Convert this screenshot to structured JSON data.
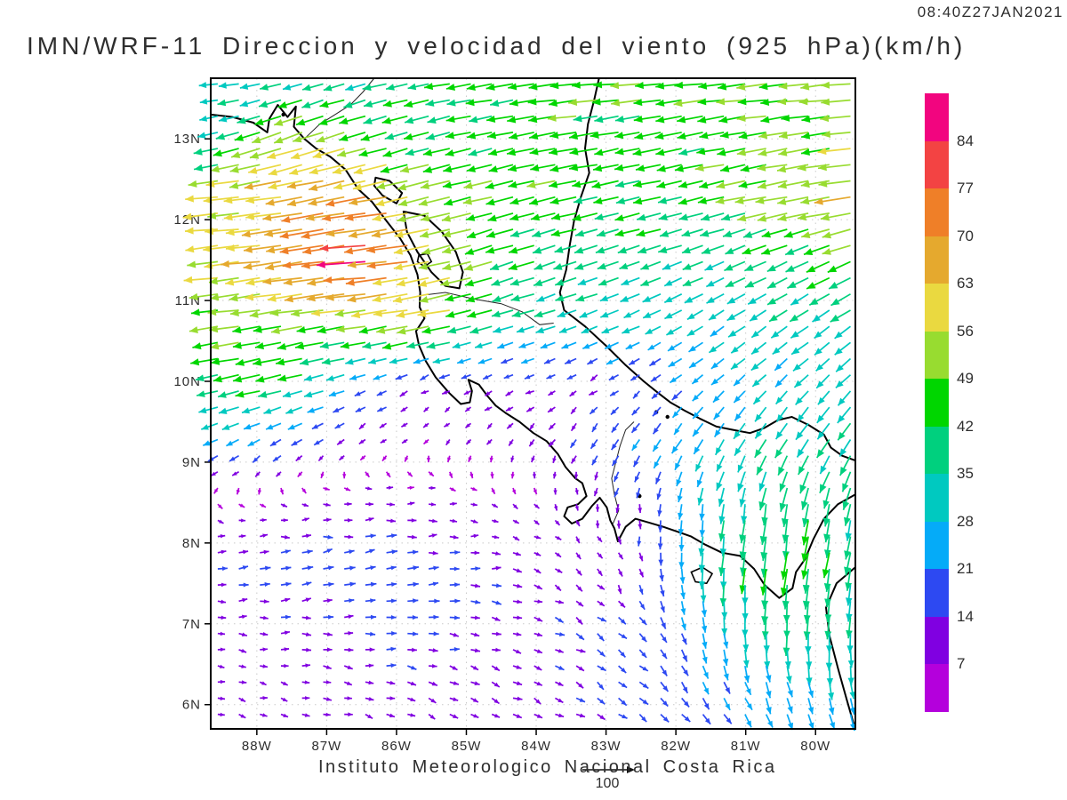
{
  "header": {
    "timestamp": "08:40Z27JAN2021",
    "title": "IMN/WRF-11 Direccion y velocidad del viento (925 hPa)(km/h)"
  },
  "footer": {
    "credit": "Instituto Meteorologico Nacional Costa Rica",
    "reference_label": "100",
    "reference_value_kmh": 100
  },
  "style": {
    "grid_color": "#c9c9c9",
    "coast_color": "#000000",
    "text_color": "#2e2e2e",
    "reference_arrow_color": "#111111"
  },
  "chart_data": {
    "type": "vector_field",
    "model": "IMN/WRF-11",
    "field": "Direccion y velocidad del viento",
    "level": "925 hPa",
    "units": "km/h",
    "valid_time": "08:40Z27JAN2021",
    "projection": {
      "lon_left": 88.66,
      "lon_right": 79.43,
      "lat_top": 13.75,
      "lat_bottom": 5.7
    },
    "x_axis": {
      "tick_labels": [
        "88W",
        "87W",
        "86W",
        "85W",
        "84W",
        "83W",
        "82W",
        "81W",
        "80W"
      ],
      "tick_lons": [
        88,
        87,
        86,
        85,
        84,
        83,
        82,
        81,
        80
      ]
    },
    "y_axis": {
      "tick_labels": [
        "6N",
        "7N",
        "8N",
        "9N",
        "10N",
        "11N",
        "12N",
        "13N"
      ],
      "tick_lats": [
        6,
        7,
        8,
        9,
        10,
        11,
        12,
        13
      ]
    },
    "colorbar": {
      "levels": [
        7,
        14,
        21,
        28,
        35,
        42,
        49,
        56,
        63,
        70,
        77,
        84
      ],
      "colors": [
        "#b400dc",
        "#8000e1",
        "#2d49f2",
        "#05abf8",
        "#00c9c0",
        "#00d07e",
        "#00d600",
        "#98dc30",
        "#ead940",
        "#e5a92e",
        "#ef7f28",
        "#f34343",
        "#f2057f"
      ]
    },
    "wind_grid": {
      "lons_w": [
        88.7,
        87.5,
        86.5,
        85.5,
        84.5,
        83.5,
        82.5,
        81.5,
        80.5,
        79.4
      ],
      "lats_n": [
        13.75,
        13.0,
        12.25,
        11.5,
        10.75,
        10.0,
        9.25,
        8.5,
        7.75,
        7.0,
        6.25,
        5.7
      ],
      "u_east_kmh": [
        [
          -28,
          -32,
          -35,
          -38,
          -42,
          -45,
          -46,
          -46,
          -48,
          -50
        ],
        [
          -32,
          -55,
          -45,
          -40,
          -42,
          -44,
          -45,
          -45,
          -47,
          -52
        ],
        [
          -55,
          -62,
          -68,
          -55,
          -45,
          -44,
          -43,
          -43,
          -50,
          -58
        ],
        [
          -55,
          -68,
          -84,
          -58,
          -42,
          -38,
          -35,
          -33,
          -36,
          -40
        ],
        [
          -46,
          -50,
          -52,
          -55,
          -35,
          -30,
          -28,
          -25,
          -28,
          -30
        ],
        [
          -40,
          -42,
          -20,
          -10,
          -12,
          -10,
          -12,
          -18,
          -20,
          -22
        ],
        [
          -22,
          -16,
          -8,
          -4,
          -5,
          -8,
          -12,
          -15,
          -18,
          -20
        ],
        [
          3,
          8,
          12,
          10,
          6,
          3,
          -2,
          -4,
          -6,
          -8
        ],
        [
          14,
          16,
          17,
          16,
          13,
          9,
          4,
          -2,
          -5,
          -7
        ],
        [
          11,
          13,
          15,
          15,
          13,
          12,
          10,
          4,
          -1,
          -3
        ],
        [
          9,
          11,
          12,
          12,
          12,
          12,
          12,
          10,
          7,
          4
        ],
        [
          9,
          10,
          11,
          11,
          12,
          12,
          12,
          13,
          11,
          8
        ]
      ],
      "v_north_kmh": [
        [
          -2,
          -8,
          -10,
          -8,
          -6,
          -4,
          -4,
          -5,
          -5,
          -4
        ],
        [
          -6,
          -20,
          -14,
          -10,
          -9,
          -8,
          -8,
          -8,
          -8,
          -6
        ],
        [
          -5,
          -10,
          -12,
          -14,
          -11,
          -10,
          -10,
          -10,
          -10,
          -8
        ],
        [
          -5,
          -10,
          -8,
          -12,
          -14,
          -12,
          -12,
          -13,
          -16,
          -18
        ],
        [
          -6,
          -8,
          -8,
          -10,
          -10,
          -11,
          -12,
          -16,
          -19,
          -20
        ],
        [
          -8,
          -10,
          -8,
          -5,
          -5,
          -6,
          -8,
          -15,
          -20,
          -22
        ],
        [
          -10,
          -10,
          -6,
          -5,
          -8,
          -12,
          -18,
          -25,
          -30,
          -30
        ],
        [
          -4,
          -1,
          1,
          0,
          -4,
          -8,
          -14,
          -30,
          -40,
          -35
        ],
        [
          1,
          3,
          3,
          2,
          -1,
          -6,
          -13,
          -35,
          -45,
          -38
        ],
        [
          -1,
          1,
          1,
          0,
          -3,
          -7,
          -13,
          -25,
          -36,
          -34
        ],
        [
          -2,
          -2,
          -3,
          -4,
          -5,
          -7,
          -11,
          -18,
          -27,
          -30
        ],
        [
          -3,
          -3,
          -4,
          -5,
          -5,
          -7,
          -10,
          -14,
          -20,
          -24
        ]
      ]
    },
    "map": {
      "coastlines": [
        [
          [
            88.66,
            13.3
          ],
          [
            88.35,
            13.27
          ],
          [
            88.05,
            13.2
          ],
          [
            87.85,
            13.08
          ],
          [
            87.82,
            13.25
          ],
          [
            87.7,
            13.42
          ],
          [
            87.56,
            13.27
          ],
          [
            87.44,
            13.4
          ],
          [
            87.47,
            13.15
          ],
          [
            87.32,
            13.0
          ],
          [
            87.15,
            12.88
          ],
          [
            86.95,
            12.78
          ],
          [
            86.73,
            12.62
          ],
          [
            86.55,
            12.38
          ],
          [
            86.35,
            12.22
          ],
          [
            86.14,
            11.98
          ],
          [
            85.95,
            11.77
          ],
          [
            85.8,
            11.56
          ],
          [
            85.7,
            11.32
          ],
          [
            85.66,
            11.1
          ],
          [
            85.67,
            10.92
          ],
          [
            85.6,
            10.78
          ],
          [
            85.72,
            10.62
          ],
          [
            85.68,
            10.45
          ],
          [
            85.58,
            10.25
          ],
          [
            85.44,
            10.05
          ],
          [
            85.25,
            9.86
          ],
          [
            85.08,
            9.72
          ],
          [
            84.95,
            9.74
          ],
          [
            84.92,
            9.88
          ],
          [
            84.97,
            10.02
          ],
          [
            84.82,
            9.96
          ],
          [
            84.7,
            9.82
          ],
          [
            84.58,
            9.7
          ],
          [
            84.44,
            9.61
          ],
          [
            84.24,
            9.5
          ],
          [
            84.04,
            9.36
          ],
          [
            83.85,
            9.26
          ],
          [
            83.69,
            9.1
          ],
          [
            83.58,
            8.94
          ],
          [
            83.44,
            8.8
          ],
          [
            83.34,
            8.74
          ],
          [
            83.28,
            8.58
          ],
          [
            83.4,
            8.48
          ],
          [
            83.55,
            8.44
          ],
          [
            83.6,
            8.33
          ],
          [
            83.49,
            8.24
          ],
          [
            83.34,
            8.3
          ],
          [
            83.2,
            8.46
          ],
          [
            83.09,
            8.56
          ],
          [
            82.99,
            8.44
          ],
          [
            82.94,
            8.28
          ],
          [
            82.88,
            8.18
          ],
          [
            82.83,
            8.02
          ],
          [
            82.72,
            8.2
          ],
          [
            82.58,
            8.3
          ],
          [
            82.38,
            8.25
          ],
          [
            82.18,
            8.2
          ],
          [
            81.98,
            8.14
          ],
          [
            81.78,
            8.08
          ],
          [
            81.58,
            7.98
          ],
          [
            81.34,
            7.88
          ],
          [
            81.08,
            7.84
          ],
          [
            80.88,
            7.68
          ],
          [
            80.73,
            7.48
          ],
          [
            80.52,
            7.32
          ],
          [
            80.33,
            7.44
          ],
          [
            80.28,
            7.64
          ],
          [
            80.15,
            7.8
          ],
          [
            80.03,
            8.05
          ],
          [
            79.88,
            8.3
          ],
          [
            79.68,
            8.48
          ],
          [
            79.43,
            8.6
          ]
        ],
        [
          [
            83.1,
            13.75
          ],
          [
            83.17,
            13.48
          ],
          [
            83.26,
            13.18
          ],
          [
            83.3,
            12.88
          ],
          [
            83.24,
            12.58
          ],
          [
            83.36,
            12.28
          ],
          [
            83.46,
            11.98
          ],
          [
            83.52,
            11.68
          ],
          [
            83.57,
            11.38
          ],
          [
            83.66,
            11.1
          ],
          [
            83.6,
            10.88
          ],
          [
            83.3,
            10.68
          ],
          [
            83.0,
            10.44
          ],
          [
            82.72,
            10.2
          ],
          [
            82.46,
            10.0
          ],
          [
            82.26,
            9.86
          ],
          [
            82.08,
            9.74
          ],
          [
            81.88,
            9.64
          ],
          [
            81.66,
            9.54
          ],
          [
            81.42,
            9.44
          ],
          [
            81.18,
            9.4
          ],
          [
            80.94,
            9.36
          ],
          [
            80.74,
            9.42
          ],
          [
            80.54,
            9.52
          ],
          [
            80.34,
            9.56
          ],
          [
            80.1,
            9.46
          ],
          [
            79.88,
            9.34
          ],
          [
            79.78,
            9.18
          ],
          [
            79.62,
            9.08
          ],
          [
            79.43,
            9.02
          ]
        ],
        [
          [
            79.43,
            7.7
          ],
          [
            79.7,
            7.5
          ],
          [
            79.85,
            7.2
          ],
          [
            79.8,
            6.85
          ],
          [
            79.68,
            6.45
          ],
          [
            79.55,
            6.05
          ],
          [
            79.44,
            5.72
          ]
        ]
      ],
      "borders": [
        [
          [
            87.32,
            13.0
          ],
          [
            87.1,
            13.18
          ],
          [
            86.88,
            13.3
          ],
          [
            86.66,
            13.42
          ],
          [
            86.48,
            13.58
          ],
          [
            86.32,
            13.75
          ]
        ],
        [
          [
            85.68,
            11.06
          ],
          [
            85.3,
            11.1
          ],
          [
            84.9,
            11.02
          ],
          [
            84.5,
            10.96
          ],
          [
            84.2,
            10.86
          ],
          [
            83.95,
            10.7
          ],
          [
            83.75,
            10.72
          ]
        ],
        [
          [
            82.6,
            9.5
          ],
          [
            82.72,
            9.4
          ],
          [
            82.8,
            9.2
          ],
          [
            82.86,
            9.0
          ],
          [
            82.92,
            8.8
          ],
          [
            82.88,
            8.6
          ],
          [
            82.82,
            8.4
          ],
          [
            82.9,
            8.24
          ]
        ]
      ],
      "lakes": [
        [
          [
            85.9,
            12.1
          ],
          [
            85.6,
            12.05
          ],
          [
            85.35,
            11.85
          ],
          [
            85.15,
            11.6
          ],
          [
            85.05,
            11.35
          ],
          [
            85.1,
            11.15
          ],
          [
            85.3,
            11.18
          ],
          [
            85.5,
            11.35
          ],
          [
            85.7,
            11.6
          ],
          [
            85.85,
            11.85
          ]
        ],
        [
          [
            86.3,
            12.52
          ],
          [
            86.1,
            12.48
          ],
          [
            85.92,
            12.33
          ],
          [
            86.0,
            12.2
          ],
          [
            86.2,
            12.3
          ],
          [
            86.32,
            12.42
          ]
        ]
      ],
      "islands": [
        [
          [
            85.68,
            11.56
          ],
          [
            85.56,
            11.58
          ],
          [
            85.5,
            11.48
          ],
          [
            85.6,
            11.42
          ],
          [
            85.7,
            11.48
          ]
        ],
        [
          [
            81.78,
            7.64
          ],
          [
            81.62,
            7.7
          ],
          [
            81.48,
            7.62
          ],
          [
            81.56,
            7.5
          ],
          [
            81.72,
            7.52
          ]
        ]
      ],
      "islets": [
        [
          87.62,
          13.3
        ],
        [
          82.28,
          9.62
        ],
        [
          82.12,
          9.56
        ],
        [
          82.52,
          8.58
        ]
      ]
    }
  }
}
